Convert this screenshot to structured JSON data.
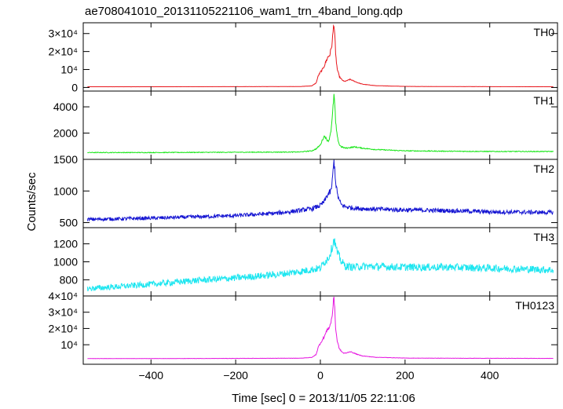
{
  "chart_data": {
    "type": "line",
    "title": "ae708041010_20131105221106_wam1_trn_4band_long.qdp",
    "xlabel": "Time [sec] 0 = 2013/11/05 22:11:06",
    "ylabel": "Counts/sec",
    "xlim": [
      -560,
      560
    ],
    "x_ticks": [
      {
        "value": -400,
        "label": "−400"
      },
      {
        "value": -200,
        "label": "−200"
      },
      {
        "value": 0,
        "label": "0"
      },
      {
        "value": 200,
        "label": "200"
      },
      {
        "value": 400,
        "label": "400"
      }
    ],
    "panels": [
      {
        "name": "TH0",
        "color": "#e8161c",
        "ylim": [
          -2000,
          36000
        ],
        "y_ticks": [
          {
            "value": 0,
            "label": "0"
          },
          {
            "value": 10000,
            "label": "10⁴"
          },
          {
            "value": 20000,
            "label": "2×10⁴"
          },
          {
            "value": 30000,
            "label": "3×10⁴"
          }
        ],
        "x": [
          -550,
          -400,
          -200,
          -50,
          -20,
          -10,
          -5,
          0,
          5,
          10,
          15,
          18,
          22,
          25,
          28,
          30,
          32,
          34,
          36,
          40,
          45,
          50,
          55,
          60,
          70,
          80,
          90,
          100,
          130,
          200,
          300,
          400,
          550
        ],
        "values": [
          400,
          400,
          450,
          500,
          900,
          2500,
          6500,
          8500,
          10000,
          12500,
          15500,
          17000,
          18000,
          21000,
          25000,
          31000,
          36000,
          30000,
          18000,
          10000,
          6000,
          4500,
          3500,
          3500,
          4500,
          3500,
          2500,
          1800,
          1000,
          600,
          500,
          450,
          400
        ],
        "noise": 0.06
      },
      {
        "name": "TH1",
        "color": "#19e619",
        "ylim": [
          0,
          5200
        ],
        "y_ticks": [
          {
            "value": 2000,
            "label": "2000"
          },
          {
            "value": 4000,
            "label": "4000"
          }
        ],
        "x": [
          -550,
          -400,
          -200,
          -50,
          -20,
          -10,
          0,
          5,
          10,
          15,
          20,
          25,
          28,
          30,
          32,
          34,
          36,
          40,
          45,
          50,
          60,
          70,
          80,
          90,
          100,
          130,
          200,
          300,
          400,
          550
        ],
        "values": [
          520,
          520,
          540,
          560,
          650,
          800,
          1100,
          1500,
          1800,
          1500,
          1400,
          2200,
          3100,
          4000,
          4900,
          4200,
          2800,
          1700,
          1100,
          950,
          850,
          900,
          950,
          900,
          850,
          750,
          650,
          620,
          600,
          600
        ],
        "noise": 0.05
      },
      {
        "name": "TH2",
        "color": "#1414d2",
        "ylim": [
          420,
          1500
        ],
        "y_ticks": [
          {
            "value": 500,
            "label": "500"
          },
          {
            "value": 1000,
            "label": "1000"
          },
          {
            "value": 1500,
            "label": "1500"
          }
        ],
        "x": [
          -550,
          -400,
          -200,
          -100,
          -50,
          -20,
          0,
          10,
          15,
          20,
          25,
          28,
          30,
          32,
          34,
          36,
          40,
          45,
          50,
          60,
          80,
          100,
          200,
          300,
          400,
          550
        ],
        "values": [
          550,
          570,
          610,
          650,
          690,
          720,
          770,
          840,
          920,
          960,
          1000,
          1150,
          1300,
          1480,
          1350,
          1150,
          960,
          840,
          780,
          750,
          730,
          720,
          700,
          690,
          670,
          660
        ],
        "noise": 0.05
      },
      {
        "name": "TH3",
        "color": "#1ee6f0",
        "ylim": [
          620,
          1380
        ],
        "y_ticks": [
          {
            "value": 800,
            "label": "800"
          },
          {
            "value": 1000,
            "label": "1000"
          },
          {
            "value": 1200,
            "label": "1200"
          }
        ],
        "x": [
          -550,
          -400,
          -300,
          -200,
          -100,
          -50,
          0,
          10,
          20,
          25,
          30,
          32,
          34,
          36,
          40,
          50,
          60,
          80,
          100,
          200,
          300,
          400,
          550
        ],
        "values": [
          700,
          750,
          790,
          820,
          860,
          890,
          930,
          1000,
          1050,
          1120,
          1200,
          1260,
          1220,
          1180,
          1100,
          1000,
          950,
          940,
          950,
          940,
          940,
          930,
          910
        ],
        "noise": 0.045
      },
      {
        "name": "TH0123",
        "color": "#e616e0",
        "ylim": [
          -2000,
          40000
        ],
        "y_ticks": [
          {
            "value": 10000,
            "label": "10⁴"
          },
          {
            "value": 20000,
            "label": "2×10⁴"
          },
          {
            "value": 30000,
            "label": "3×10⁴"
          },
          {
            "value": 40000,
            "label": "4×10⁴"
          }
        ],
        "x": [
          -550,
          -400,
          -200,
          -50,
          -20,
          -10,
          -5,
          0,
          5,
          10,
          15,
          18,
          22,
          25,
          28,
          30,
          32,
          34,
          36,
          40,
          45,
          50,
          55,
          60,
          70,
          80,
          90,
          100,
          130,
          200,
          300,
          400,
          550
        ],
        "values": [
          1500,
          1500,
          1600,
          1700,
          2200,
          4000,
          8500,
          11000,
          13000,
          15500,
          18500,
          20000,
          21000,
          24000,
          28000,
          34000,
          39000,
          33000,
          20000,
          12000,
          7500,
          5800,
          4800,
          4800,
          5800,
          4800,
          3800,
          3100,
          2300,
          1800,
          1700,
          1650,
          1600
        ],
        "noise": 0.05
      }
    ],
    "grid": false,
    "legend": "panel labels at top-right of each panel"
  }
}
